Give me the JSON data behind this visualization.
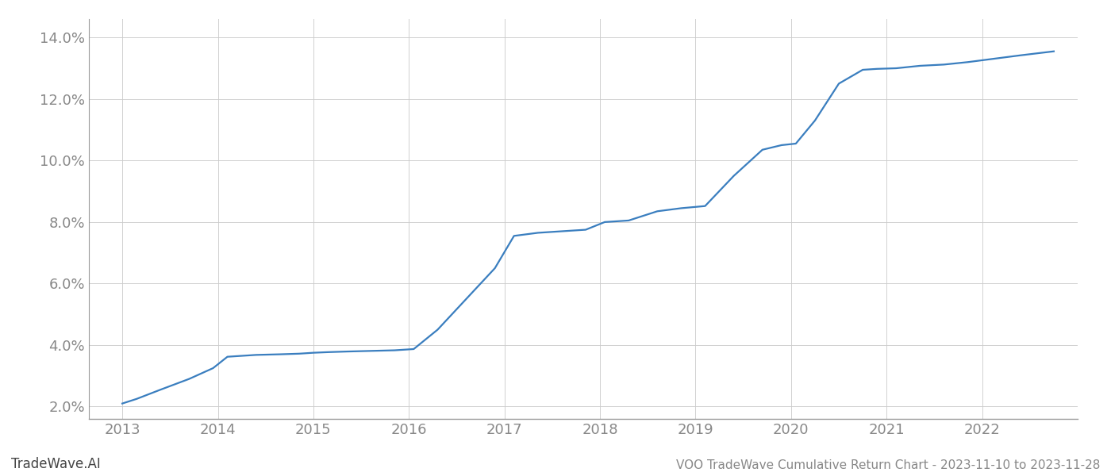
{
  "title": "VOO TradeWave Cumulative Return Chart - 2023-11-10 to 2023-11-28",
  "watermark": "TradeWave.AI",
  "line_color": "#3a7ebf",
  "background_color": "#ffffff",
  "x_values": [
    2013.0,
    2013.15,
    2013.4,
    2013.7,
    2013.95,
    2014.1,
    2014.4,
    2014.65,
    2014.85,
    2015.0,
    2015.15,
    2015.35,
    2015.6,
    2015.85,
    2016.05,
    2016.3,
    2016.6,
    2016.9,
    2017.1,
    2017.35,
    2017.6,
    2017.85,
    2018.05,
    2018.3,
    2018.6,
    2018.85,
    2019.1,
    2019.4,
    2019.7,
    2019.9,
    2020.05,
    2020.25,
    2020.5,
    2020.75,
    2020.9,
    2021.1,
    2021.35,
    2021.6,
    2021.85,
    2022.1,
    2022.4,
    2022.75
  ],
  "y_values": [
    2.1,
    2.25,
    2.55,
    2.9,
    3.25,
    3.62,
    3.68,
    3.7,
    3.72,
    3.75,
    3.77,
    3.79,
    3.81,
    3.83,
    3.87,
    4.5,
    5.5,
    6.5,
    7.55,
    7.65,
    7.7,
    7.75,
    8.0,
    8.05,
    8.35,
    8.45,
    8.52,
    9.5,
    10.35,
    10.5,
    10.55,
    11.3,
    12.5,
    12.95,
    12.98,
    13.0,
    13.08,
    13.12,
    13.2,
    13.3,
    13.42,
    13.55
  ],
  "xlim": [
    2012.65,
    2023.0
  ],
  "ylim": [
    1.6,
    14.6
  ],
  "yticks": [
    2.0,
    4.0,
    6.0,
    8.0,
    10.0,
    12.0,
    14.0
  ],
  "xticks": [
    2013,
    2014,
    2015,
    2016,
    2017,
    2018,
    2019,
    2020,
    2021,
    2022
  ],
  "line_width": 1.6,
  "grid_color": "#cccccc",
  "tick_color": "#888888",
  "spine_color": "#999999",
  "title_fontsize": 11,
  "watermark_fontsize": 12,
  "tick_fontsize": 13
}
